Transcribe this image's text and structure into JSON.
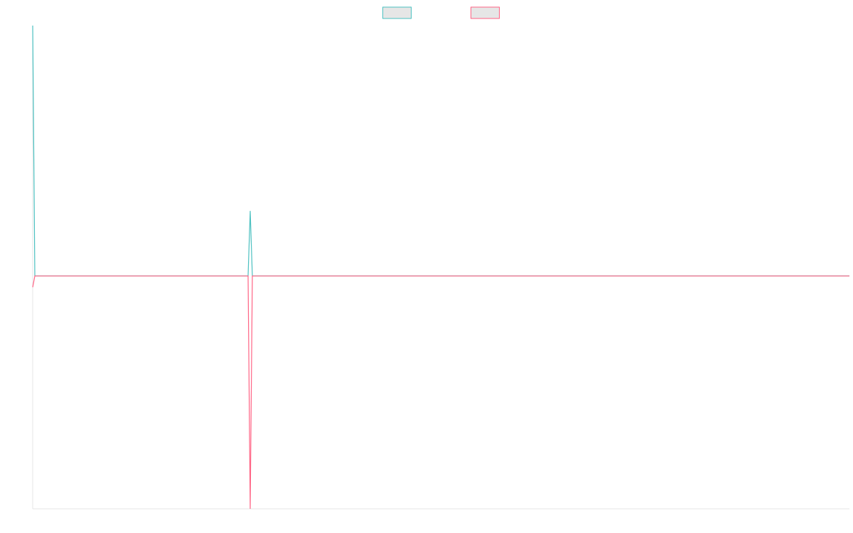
{
  "chart_data": {
    "type": "line",
    "x": [
      0,
      1,
      101,
      102,
      103,
      383
    ],
    "series": [
      {
        "color": "#4bc0c0",
        "values": [
          1,
          0,
          0,
          0.26,
          0,
          0
        ]
      },
      {
        "color": "#ff6384",
        "values": [
          -0.045,
          0,
          0,
          -0.93,
          0,
          0
        ]
      }
    ],
    "xlim": [
      0,
      383
    ],
    "ylim": [
      -0.93,
      1
    ],
    "grid": false,
    "legend": "top"
  }
}
